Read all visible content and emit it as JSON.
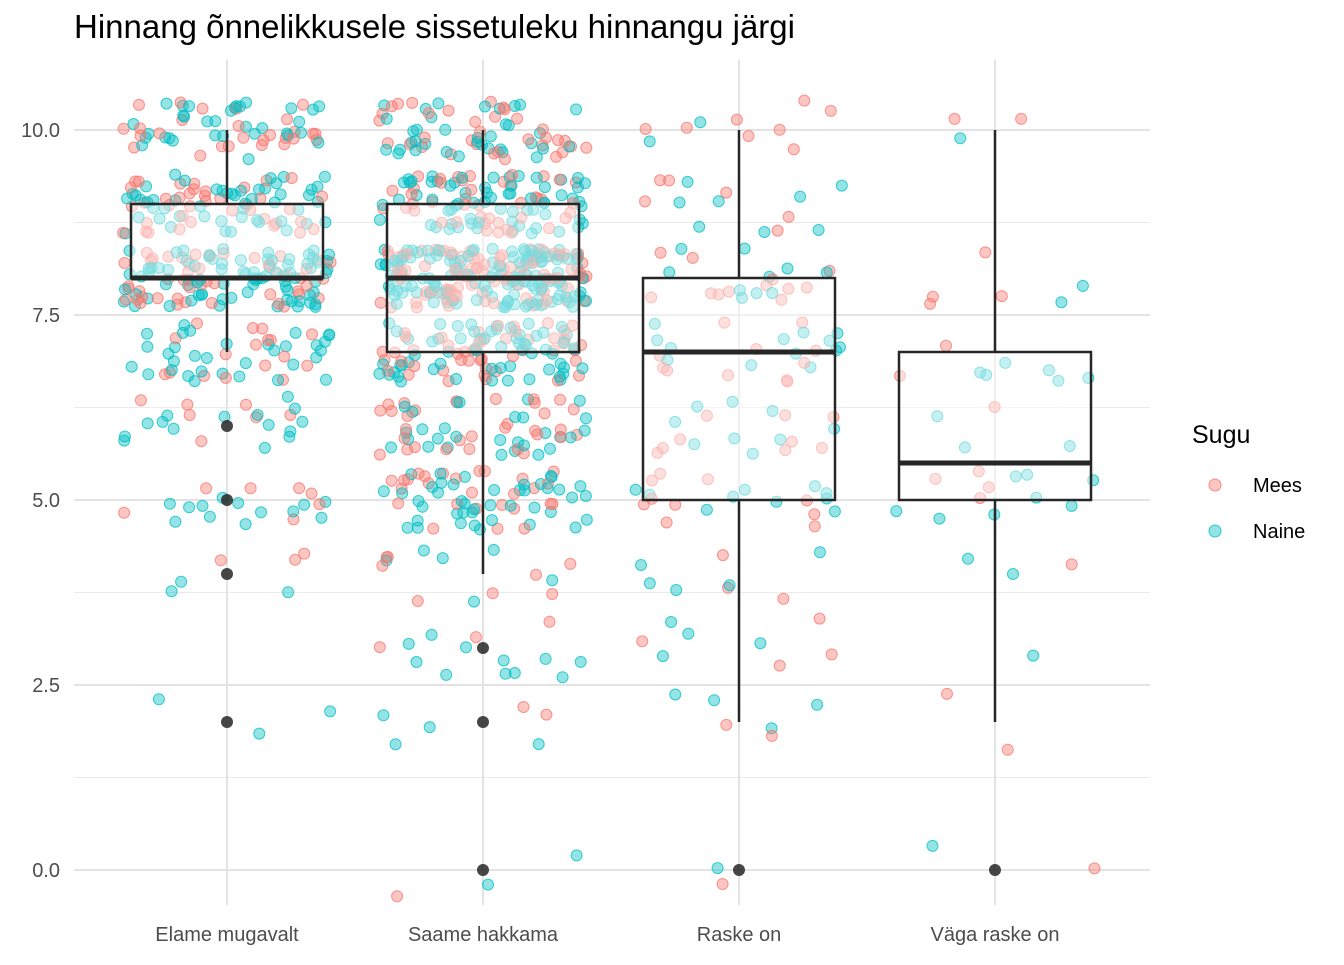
{
  "chart_data": {
    "type": "boxplot-jitter",
    "title": "Hinnang õnnelikkusele sissetuleku hinnangu järgi",
    "xlabel": "",
    "ylabel": "",
    "ylim": [
      -0.5,
      11.0
    ],
    "yticks": [
      0.0,
      2.5,
      5.0,
      7.5,
      10.0
    ],
    "ytick_labels": [
      "0.0",
      "2.5",
      "5.0",
      "7.5",
      "10.0"
    ],
    "grid": true,
    "legend": {
      "title": "Sugu",
      "placement": "right",
      "entries": [
        {
          "name": "Mees",
          "color": "#F8766D"
        },
        {
          "name": "Naine",
          "color": "#00BFC4"
        }
      ]
    },
    "categories": [
      "Elame mugavalt",
      "Saame hakkama",
      "Raske on",
      "Väga raske on"
    ],
    "boxes": [
      {
        "category": "Elame mugavalt",
        "whisker_low": 7,
        "q1": 8,
        "median": 8,
        "q3": 9,
        "whisker_high": 10,
        "outliers": [
          6,
          5,
          4,
          2
        ]
      },
      {
        "category": "Saame hakkama",
        "whisker_low": 4,
        "q1": 7,
        "median": 8,
        "q3": 9,
        "whisker_high": 10,
        "outliers": [
          3,
          2,
          0
        ]
      },
      {
        "category": "Raske on",
        "whisker_low": 2,
        "q1": 5,
        "median": 7,
        "q3": 8,
        "whisker_high": 10,
        "outliers": [
          0
        ]
      },
      {
        "category": "Väga raske on",
        "whisker_low": 2,
        "q1": 5,
        "median": 5.5,
        "q3": 7,
        "whisker_high": 10,
        "outliers": [
          0
        ]
      }
    ],
    "point_counts": [
      {
        "category": "Elame mugavalt",
        "distribution": {
          "10": 60,
          "9": 90,
          "8": 130,
          "7": 50,
          "6": 22,
          "5": 20,
          "4": 6,
          "2": 3
        }
      },
      {
        "category": "Saame hakkama",
        "distribution": {
          "10": 70,
          "9": 110,
          "8": 230,
          "7": 110,
          "6": 60,
          "5": 70,
          "4": 14,
          "3": 14,
          "2": 6,
          "0": 3
        }
      },
      {
        "category": "Raske on",
        "distribution": {
          "10": 10,
          "9": 14,
          "8": 22,
          "7": 24,
          "6": 18,
          "5": 20,
          "4": 8,
          "3": 8,
          "2": 6,
          "0": 2
        }
      },
      {
        "category": "Väga raske on",
        "distribution": {
          "10": 3,
          "8": 6,
          "7": 8,
          "6": 4,
          "5": 12,
          "4": 3,
          "3": 1,
          "2": 2,
          "0": 2
        }
      }
    ],
    "male_share": [
      0.4,
      0.4,
      0.55,
      0.45
    ]
  }
}
